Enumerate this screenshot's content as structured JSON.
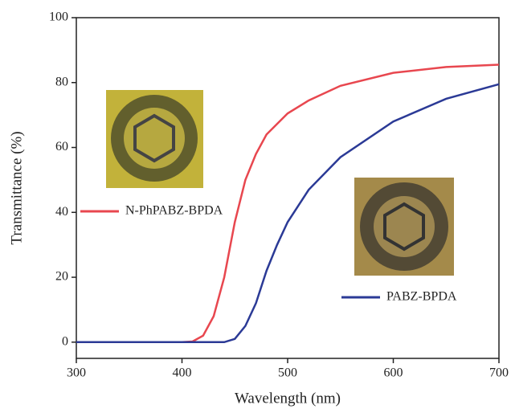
{
  "chart_data": {
    "type": "line",
    "xlabel": "Wavelength (nm)",
    "ylabel": "Transmittance (%)",
    "xlim": [
      300,
      700
    ],
    "ylim": [
      -5,
      100
    ],
    "xticks": [
      300,
      400,
      500,
      600,
      700
    ],
    "yticks": [
      0,
      20,
      40,
      60,
      80,
      100
    ],
    "series": [
      {
        "name": "N-PhPABZ-BPDA",
        "color": "#e8474f",
        "x": [
          300,
          400,
          410,
          420,
          430,
          440,
          450,
          460,
          470,
          480,
          500,
          520,
          550,
          600,
          650,
          700
        ],
        "values": [
          0,
          0,
          0.2,
          2,
          8,
          20,
          37,
          50,
          58,
          64,
          70.5,
          74.5,
          79,
          83,
          84.8,
          85.5
        ]
      },
      {
        "name": "PABZ-BPDA",
        "color": "#2b3a96",
        "x": [
          300,
          440,
          450,
          460,
          470,
          480,
          490,
          500,
          520,
          550,
          600,
          650,
          700
        ],
        "values": [
          0,
          0,
          1,
          5,
          12,
          22,
          30,
          37,
          47,
          57,
          68,
          75,
          79.5
        ]
      }
    ]
  }
}
